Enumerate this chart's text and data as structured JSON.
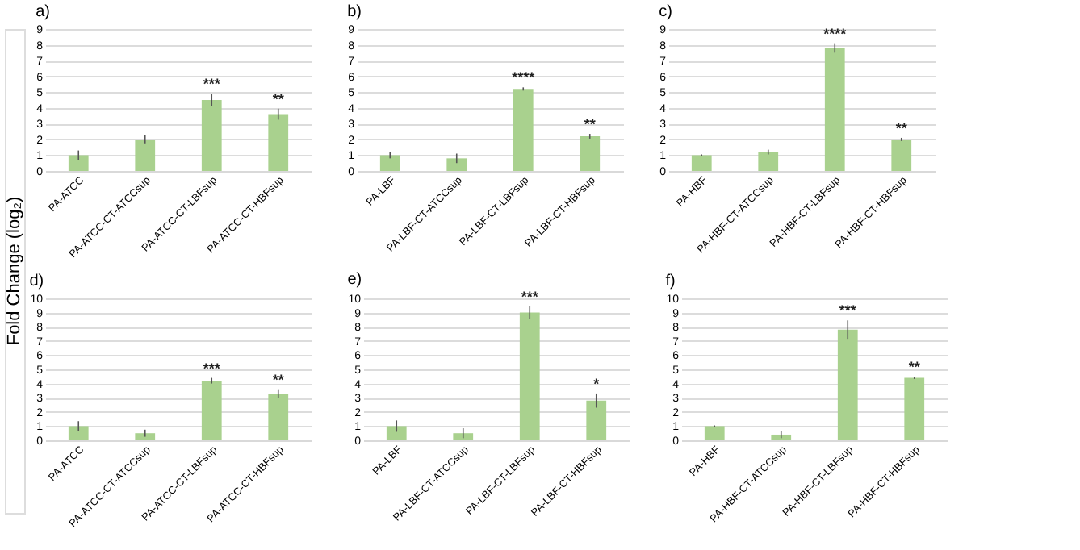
{
  "chart_data": [
    {
      "type": "bar",
      "title": "a)",
      "ylabel": "Fold Change (log₂)",
      "categories": [
        "PA-ATCC",
        "PA-ATCC-CT-ATCCsup",
        "PA-ATCC-CT-LBFsup",
        "PA-ATCC-CT-HBFsup"
      ],
      "values": [
        1.0,
        2.0,
        4.5,
        3.6
      ],
      "errors": [
        0.3,
        0.25,
        0.4,
        0.35
      ],
      "color": "#a9d18e",
      "ylim": [
        0,
        9
      ],
      "yticks": [
        0,
        1,
        2,
        3,
        4,
        5,
        6,
        7,
        8,
        9
      ],
      "grid": "y",
      "annotations": [
        {
          "text": "***",
          "x": "PA-ATCC-CT-LBFsup",
          "y": 4.9
        },
        {
          "text": "**",
          "x": "PA-ATCC-CT-HBFsup",
          "y": 3.95
        }
      ]
    },
    {
      "type": "bar",
      "title": "b)",
      "categories": [
        "PA-LBF",
        "PA-LBF-CT-ATCCsup",
        "PA-LBF-CT-LBFsup",
        "PA-LBF-CT-HBFsup"
      ],
      "values": [
        1.0,
        0.8,
        5.2,
        2.2
      ],
      "errors": [
        0.2,
        0.3,
        0.1,
        0.15
      ],
      "color": "#a9d18e",
      "ylim": [
        0,
        9
      ],
      "yticks": [
        0,
        1,
        2,
        3,
        4,
        5,
        6,
        7,
        8,
        9
      ],
      "grid": "y",
      "annotations": [
        {
          "text": "****",
          "x": "PA-LBF-CT-LBFsup",
          "y": 5.3
        },
        {
          "text": "**",
          "x": "PA-LBF-CT-HBFsup",
          "y": 2.35
        }
      ]
    },
    {
      "type": "bar",
      "title": "c)",
      "categories": [
        "PA-HBF",
        "PA-HBF-CT-ATCCsup",
        "PA-HBF-CT-LBFsup",
        "PA-HBF-CT-HBFsup"
      ],
      "values": [
        1.0,
        1.2,
        7.8,
        2.0
      ],
      "errors": [
        0.05,
        0.15,
        0.3,
        0.1
      ],
      "color": "#a9d18e",
      "ylim": [
        0,
        9
      ],
      "yticks": [
        0,
        1,
        2,
        3,
        4,
        5,
        6,
        7,
        8,
        9
      ],
      "grid": "y",
      "annotations": [
        {
          "text": "****",
          "x": "PA-HBF-CT-LBFsup",
          "y": 8.1
        },
        {
          "text": "**",
          "x": "PA-HBF-CT-HBFsup",
          "y": 2.1
        }
      ]
    },
    {
      "type": "bar",
      "title": "d)",
      "categories": [
        "PA-ATCC",
        "PA-ATCC-CT-ATCCsup",
        "PA-ATCC-CT-LBFsup",
        "PA-ATCC-CT-HBFsup"
      ],
      "values": [
        1.0,
        0.5,
        4.2,
        3.3
      ],
      "errors": [
        0.35,
        0.25,
        0.2,
        0.3
      ],
      "color": "#a9d18e",
      "ylim": [
        0,
        10
      ],
      "yticks": [
        0,
        1,
        2,
        3,
        4,
        5,
        6,
        7,
        8,
        9,
        10
      ],
      "grid": "y",
      "annotations": [
        {
          "text": "***",
          "x": "PA-ATCC-CT-LBFsup",
          "y": 4.4
        },
        {
          "text": "**",
          "x": "PA-ATCC-CT-HBFsup",
          "y": 3.6
        }
      ]
    },
    {
      "type": "bar",
      "title": "e)",
      "categories": [
        "PA-LBF",
        "PA-LBF-CT-ATCCsup",
        "PA-LBF-CT-LBFsup",
        "PA-LBF-CT-HBFsup"
      ],
      "values": [
        1.0,
        0.5,
        9.0,
        2.8
      ],
      "errors": [
        0.4,
        0.35,
        0.45,
        0.5
      ],
      "color": "#a9d18e",
      "ylim": [
        0,
        10
      ],
      "yticks": [
        0,
        1,
        2,
        3,
        4,
        5,
        6,
        7,
        8,
        9,
        10
      ],
      "grid": "y",
      "annotations": [
        {
          "text": "***",
          "x": "PA-LBF-CT-LBFsup",
          "y": 9.45
        },
        {
          "text": "*",
          "x": "PA-LBF-CT-HBFsup",
          "y": 3.3
        }
      ]
    },
    {
      "type": "bar",
      "title": "f)",
      "categories": [
        "PA-HBF",
        "PA-HBF-CT-ATCCsup",
        "PA-HBF-CT-LBFsup",
        "PA-HBF-CT-HBFsup"
      ],
      "values": [
        1.0,
        0.4,
        7.8,
        4.4
      ],
      "errors": [
        0.05,
        0.25,
        0.65,
        0.08
      ],
      "color": "#a9d18e",
      "ylim": [
        0,
        10
      ],
      "yticks": [
        0,
        1,
        2,
        3,
        4,
        5,
        6,
        7,
        8,
        9,
        10
      ],
      "grid": "y",
      "annotations": [
        {
          "text": "***",
          "x": "PA-HBF-CT-LBFsup",
          "y": 8.45
        },
        {
          "text": "**",
          "x": "PA-HBF-CT-HBFsup",
          "y": 4.48
        }
      ]
    }
  ]
}
